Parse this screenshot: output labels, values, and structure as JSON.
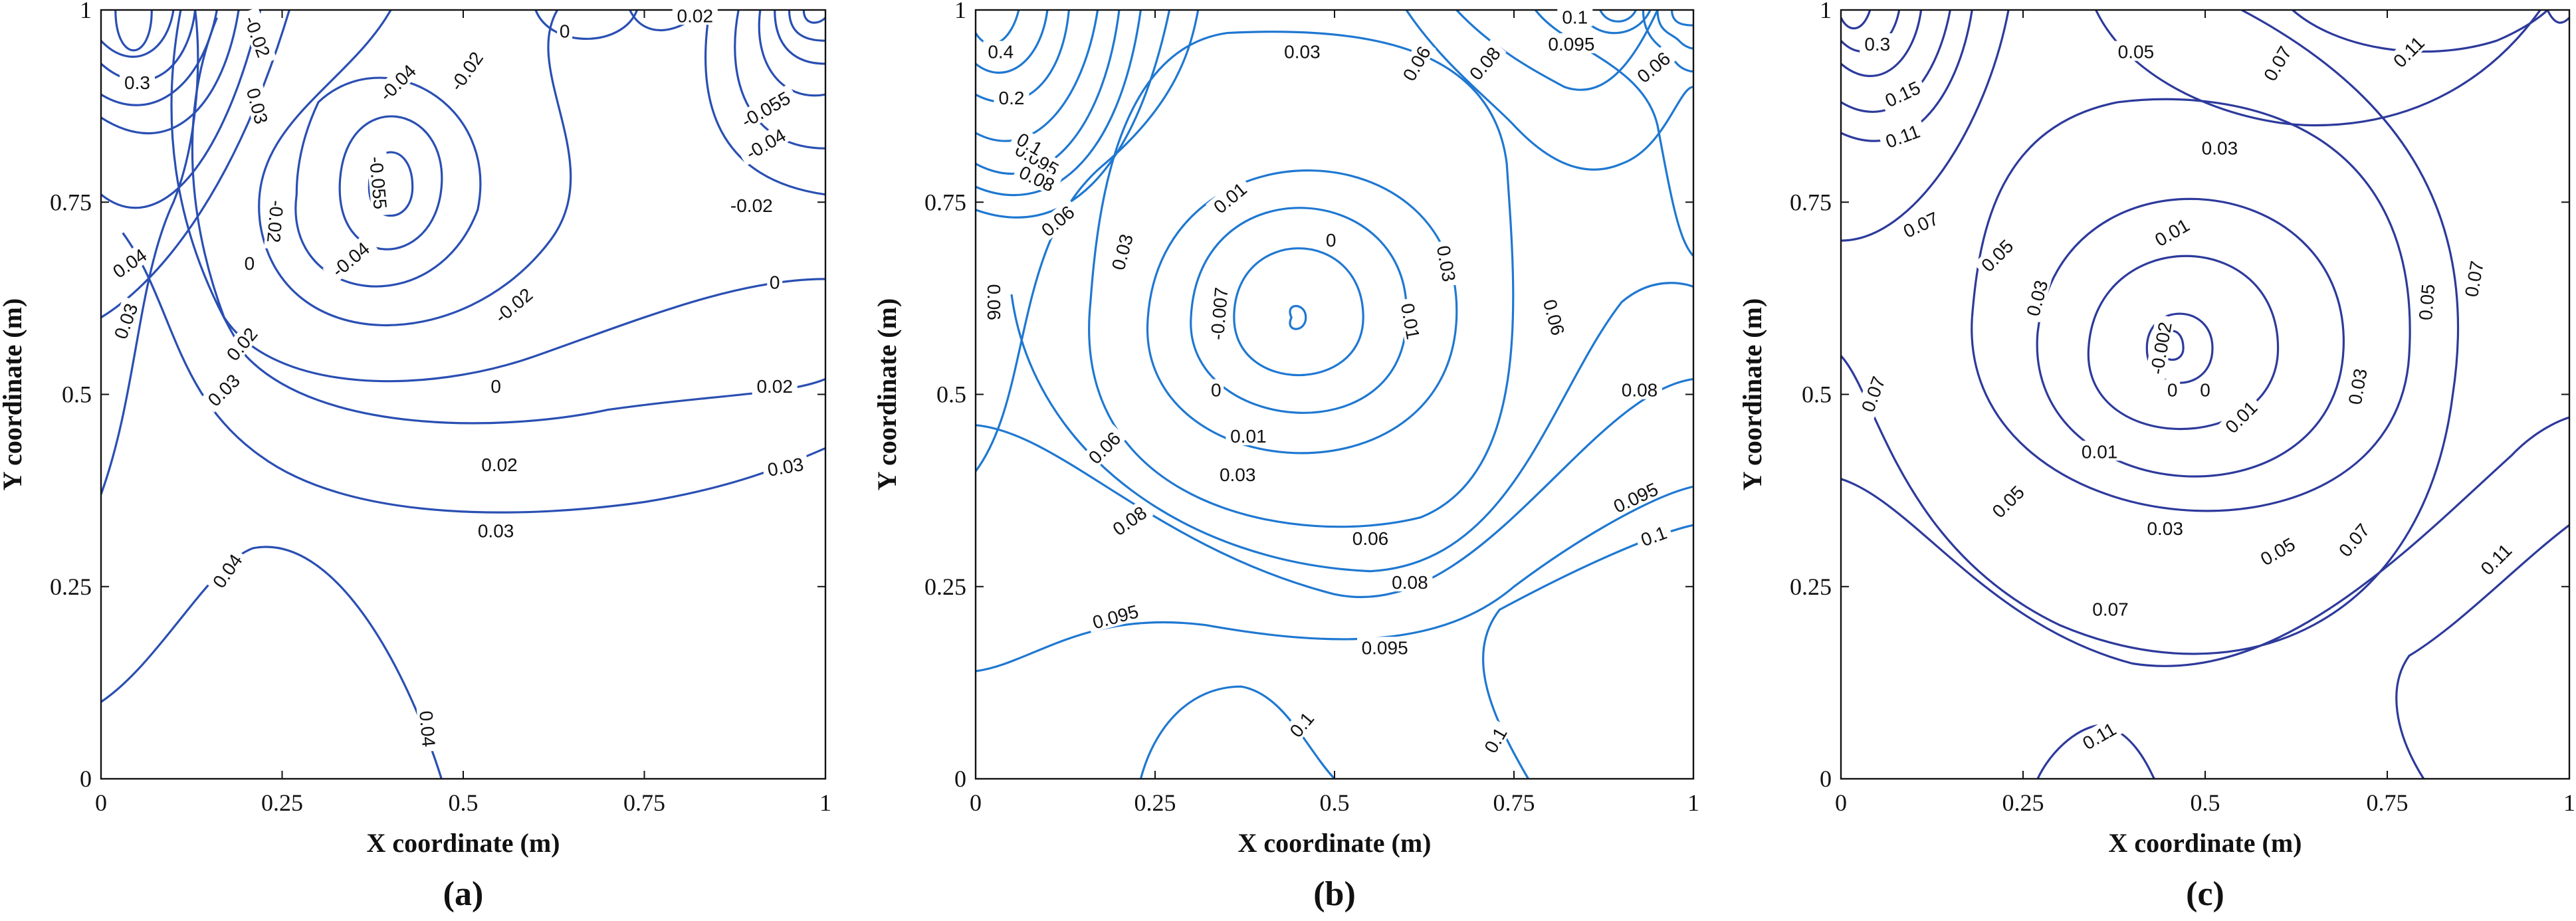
{
  "chart_data": [
    {
      "type": "contour",
      "panel_label": "(a)",
      "xlabel": "X coordinate (m)",
      "ylabel": "Y coordinate (m)",
      "xlim": [
        0,
        1
      ],
      "ylim": [
        0,
        1
      ],
      "xticks": [
        "0",
        "0.25",
        "0.5",
        "0.75",
        "1"
      ],
      "yticks": [
        "0",
        "0.25",
        "0.5",
        "0.75",
        "1"
      ],
      "line_color": "#2a4fb3",
      "contour_labels": [
        {
          "text": "0.3",
          "x": 0.05,
          "y": 0.905,
          "rot": 0
        },
        {
          "text": "-0.02",
          "x": 0.215,
          "y": 0.965,
          "rot": 70
        },
        {
          "text": "0.03",
          "x": 0.215,
          "y": 0.875,
          "rot": 75
        },
        {
          "text": "0.02",
          "x": 0.82,
          "y": 0.992,
          "rot": 0
        },
        {
          "text": "0",
          "x": 0.64,
          "y": 0.972,
          "rot": 0
        },
        {
          "text": "-0.02",
          "x": 0.505,
          "y": 0.92,
          "rot": -55
        },
        {
          "text": "-0.04",
          "x": 0.41,
          "y": 0.905,
          "rot": -45
        },
        {
          "text": "-0.055",
          "x": 0.382,
          "y": 0.775,
          "rot": 85
        },
        {
          "text": "-0.055",
          "x": 0.918,
          "y": 0.87,
          "rot": -30
        },
        {
          "text": "-0.04",
          "x": 0.918,
          "y": 0.825,
          "rot": -30
        },
        {
          "text": "-0.02",
          "x": 0.898,
          "y": 0.745,
          "rot": 0
        },
        {
          "text": "-0.02",
          "x": 0.24,
          "y": 0.725,
          "rot": 95
        },
        {
          "text": "-0.04",
          "x": 0.345,
          "y": 0.675,
          "rot": -40
        },
        {
          "text": "0",
          "x": 0.205,
          "y": 0.67,
          "rot": 0
        },
        {
          "text": "-0.02",
          "x": 0.57,
          "y": 0.615,
          "rot": -40
        },
        {
          "text": "0",
          "x": 0.93,
          "y": 0.645,
          "rot": 0
        },
        {
          "text": "0.04",
          "x": 0.04,
          "y": 0.67,
          "rot": -35
        },
        {
          "text": "0.03",
          "x": 0.035,
          "y": 0.595,
          "rot": -70
        },
        {
          "text": "0.02",
          "x": 0.195,
          "y": 0.565,
          "rot": -50
        },
        {
          "text": "0.03",
          "x": 0.17,
          "y": 0.505,
          "rot": -45
        },
        {
          "text": "0",
          "x": 0.545,
          "y": 0.51,
          "rot": 0
        },
        {
          "text": "0.02",
          "x": 0.93,
          "y": 0.51,
          "rot": 0
        },
        {
          "text": "0.02",
          "x": 0.55,
          "y": 0.408,
          "rot": 0
        },
        {
          "text": "0.03",
          "x": 0.945,
          "y": 0.405,
          "rot": -10
        },
        {
          "text": "0.03",
          "x": 0.545,
          "y": 0.322,
          "rot": 0
        },
        {
          "text": "0.04",
          "x": 0.175,
          "y": 0.27,
          "rot": -55
        },
        {
          "text": "0.04",
          "x": 0.45,
          "y": 0.065,
          "rot": 85
        }
      ]
    },
    {
      "type": "contour",
      "panel_label": "(b)",
      "xlabel": "X coordinate (m)",
      "ylabel": "Y coordinate (m)",
      "xlim": [
        0,
        1
      ],
      "ylim": [
        0,
        1
      ],
      "xticks": [
        "0",
        "0.25",
        "0.5",
        "0.75",
        "1"
      ],
      "yticks": [
        "0",
        "0.25",
        "0.5",
        "0.75",
        "1"
      ],
      "line_color": "#1f78d1",
      "contour_labels": [
        {
          "text": "0.4",
          "x": 0.035,
          "y": 0.945,
          "rot": 0
        },
        {
          "text": "0.2",
          "x": 0.05,
          "y": 0.885,
          "rot": 0
        },
        {
          "text": "0.1",
          "x": 0.835,
          "y": 0.99,
          "rot": 0
        },
        {
          "text": "0.095",
          "x": 0.83,
          "y": 0.955,
          "rot": 0
        },
        {
          "text": "0.03",
          "x": 0.455,
          "y": 0.945,
          "rot": 0
        },
        {
          "text": "0.06",
          "x": 0.615,
          "y": 0.93,
          "rot": -60
        },
        {
          "text": "0.08",
          "x": 0.71,
          "y": 0.93,
          "rot": -50
        },
        {
          "text": "0.06",
          "x": 0.945,
          "y": 0.925,
          "rot": -40
        },
        {
          "text": "0.095",
          "x": 0.085,
          "y": 0.805,
          "rot": 30
        },
        {
          "text": "0.1",
          "x": 0.075,
          "y": 0.825,
          "rot": 30
        },
        {
          "text": "0.08",
          "x": 0.085,
          "y": 0.78,
          "rot": 25
        },
        {
          "text": "0.06",
          "x": 0.115,
          "y": 0.725,
          "rot": -40
        },
        {
          "text": "0.03",
          "x": 0.205,
          "y": 0.685,
          "rot": -75
        },
        {
          "text": "0.01",
          "x": 0.355,
          "y": 0.755,
          "rot": -40
        },
        {
          "text": "0",
          "x": 0.495,
          "y": 0.7,
          "rot": 0
        },
        {
          "text": "-0.007",
          "x": 0.34,
          "y": 0.605,
          "rot": -85
        },
        {
          "text": "0.03",
          "x": 0.655,
          "y": 0.67,
          "rot": 80
        },
        {
          "text": "0.01",
          "x": 0.605,
          "y": 0.595,
          "rot": 80
        },
        {
          "text": "0.06",
          "x": 0.805,
          "y": 0.6,
          "rot": 75
        },
        {
          "text": "0.06",
          "x": 0.025,
          "y": 0.62,
          "rot": 90
        },
        {
          "text": "0",
          "x": 0.335,
          "y": 0.505,
          "rot": 0
        },
        {
          "text": "0.01",
          "x": 0.38,
          "y": 0.445,
          "rot": 0
        },
        {
          "text": "0.08",
          "x": 0.925,
          "y": 0.505,
          "rot": 0
        },
        {
          "text": "0.06",
          "x": 0.18,
          "y": 0.43,
          "rot": -45
        },
        {
          "text": "0.03",
          "x": 0.365,
          "y": 0.395,
          "rot": 0
        },
        {
          "text": "0.08",
          "x": 0.215,
          "y": 0.335,
          "rot": -35
        },
        {
          "text": "0.06",
          "x": 0.55,
          "y": 0.312,
          "rot": 0
        },
        {
          "text": "0.095",
          "x": 0.92,
          "y": 0.365,
          "rot": -25
        },
        {
          "text": "0.1",
          "x": 0.945,
          "y": 0.315,
          "rot": -20
        },
        {
          "text": "0.08",
          "x": 0.605,
          "y": 0.255,
          "rot": 0
        },
        {
          "text": "0.095",
          "x": 0.195,
          "y": 0.21,
          "rot": -15
        },
        {
          "text": "0.095",
          "x": 0.57,
          "y": 0.17,
          "rot": 0
        },
        {
          "text": "0.1",
          "x": 0.455,
          "y": 0.07,
          "rot": -50
        },
        {
          "text": "0.1",
          "x": 0.725,
          "y": 0.05,
          "rot": -60
        }
      ]
    },
    {
      "type": "contour",
      "panel_label": "(c)",
      "xlabel": "X coordinate (m)",
      "ylabel": "Y coordinate (m)",
      "xlim": [
        0,
        1
      ],
      "ylim": [
        0,
        1
      ],
      "xticks": [
        "0",
        "0.25",
        "0.5",
        "0.75",
        "1"
      ],
      "yticks": [
        "0",
        "0.25",
        "0.5",
        "0.75",
        "1"
      ],
      "line_color": "#2d3a9c",
      "contour_labels": [
        {
          "text": "0.3",
          "x": 0.05,
          "y": 0.955,
          "rot": 0
        },
        {
          "text": "0.15",
          "x": 0.085,
          "y": 0.89,
          "rot": -25
        },
        {
          "text": "0.11",
          "x": 0.085,
          "y": 0.835,
          "rot": -20
        },
        {
          "text": "0.07",
          "x": 0.11,
          "y": 0.72,
          "rot": -25
        },
        {
          "text": "0.05",
          "x": 0.215,
          "y": 0.68,
          "rot": -45
        },
        {
          "text": "0.05",
          "x": 0.405,
          "y": 0.945,
          "rot": 0
        },
        {
          "text": "0.07",
          "x": 0.6,
          "y": 0.93,
          "rot": -60
        },
        {
          "text": "0.11",
          "x": 0.78,
          "y": 0.945,
          "rot": -45
        },
        {
          "text": "0.03",
          "x": 0.52,
          "y": 0.82,
          "rot": 0
        },
        {
          "text": "0.01",
          "x": 0.455,
          "y": 0.71,
          "rot": -30
        },
        {
          "text": "0.03",
          "x": 0.27,
          "y": 0.625,
          "rot": -75
        },
        {
          "text": "-0.002",
          "x": 0.44,
          "y": 0.56,
          "rot": -80
        },
        {
          "text": "0",
          "x": 0.455,
          "y": 0.505,
          "rot": 0
        },
        {
          "text": "0",
          "x": 0.5,
          "y": 0.505,
          "rot": 0
        },
        {
          "text": "0.01",
          "x": 0.55,
          "y": 0.47,
          "rot": -45
        },
        {
          "text": "0.03",
          "x": 0.71,
          "y": 0.51,
          "rot": -80
        },
        {
          "text": "0.05",
          "x": 0.805,
          "y": 0.62,
          "rot": -85
        },
        {
          "text": "0.07",
          "x": 0.87,
          "y": 0.65,
          "rot": -80
        },
        {
          "text": "0.07",
          "x": 0.045,
          "y": 0.5,
          "rot": -70
        },
        {
          "text": "0.01",
          "x": 0.355,
          "y": 0.425,
          "rot": 0
        },
        {
          "text": "0.05",
          "x": 0.23,
          "y": 0.36,
          "rot": -45
        },
        {
          "text": "0.03",
          "x": 0.445,
          "y": 0.325,
          "rot": 0
        },
        {
          "text": "0.05",
          "x": 0.6,
          "y": 0.295,
          "rot": -30
        },
        {
          "text": "0.07",
          "x": 0.705,
          "y": 0.31,
          "rot": -50
        },
        {
          "text": "0.07",
          "x": 0.37,
          "y": 0.22,
          "rot": 0
        },
        {
          "text": "0.11",
          "x": 0.9,
          "y": 0.285,
          "rot": -45
        },
        {
          "text": "0.11",
          "x": 0.355,
          "y": 0.055,
          "rot": -30
        }
      ]
    }
  ]
}
